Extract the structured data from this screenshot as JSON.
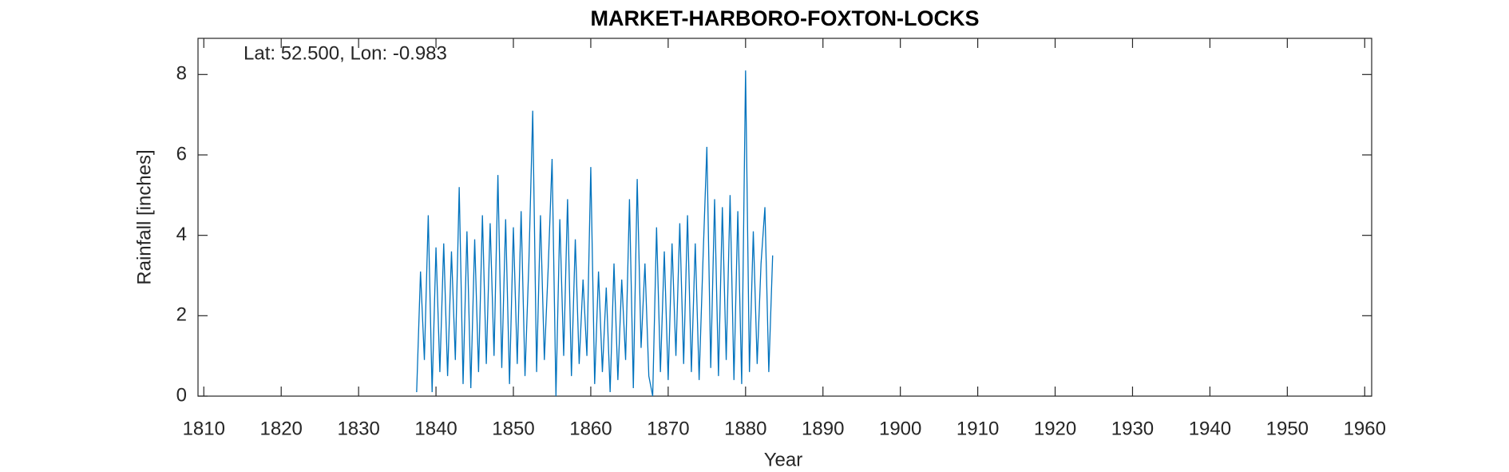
{
  "chart_data": {
    "type": "line",
    "title": "MARKET-HARBORO-FOXTON-LOCKS",
    "annotation": "Lat: 52.500, Lon: -0.983",
    "xlabel": "Year",
    "ylabel": "Rainfall [inches]",
    "color": "#0072bd",
    "x": [
      1837.5,
      1838,
      1838.5,
      1839,
      1839.5,
      1840,
      1840.5,
      1841,
      1841.5,
      1842,
      1842.5,
      1843,
      1843.5,
      1844,
      1844.5,
      1845,
      1845.5,
      1846,
      1846.5,
      1847,
      1847.5,
      1848,
      1848.5,
      1849,
      1849.5,
      1850,
      1850.5,
      1851,
      1851.5,
      1852,
      1852.5,
      1853,
      1853.5,
      1854,
      1854.5,
      1855,
      1855.5,
      1856,
      1856.5,
      1857,
      1857.5,
      1858,
      1858.5,
      1859,
      1859.5,
      1860,
      1860.5,
      1861,
      1861.5,
      1862,
      1862.5,
      1863,
      1863.5,
      1864,
      1864.5,
      1865,
      1865.5,
      1866,
      1866.5,
      1867,
      1867.5,
      1868,
      1868.5,
      1869,
      1869.5,
      1870,
      1870.5,
      1871,
      1871.5,
      1872,
      1872.5,
      1873,
      1873.5,
      1874,
      1874.5,
      1875,
      1875.5,
      1876,
      1876.5,
      1877,
      1877.5,
      1878,
      1878.5,
      1879,
      1879.5,
      1880,
      1880.5,
      1881,
      1881.5,
      1882,
      1882.5,
      1883,
      1883.5
    ],
    "values": [
      0.1,
      3.1,
      0.9,
      4.5,
      0.1,
      3.7,
      0.6,
      3.8,
      0.5,
      3.6,
      0.9,
      5.2,
      0.3,
      4.1,
      0.2,
      3.9,
      0.6,
      4.5,
      0.8,
      4.3,
      1.0,
      5.5,
      0.7,
      4.4,
      0.3,
      4.2,
      0.8,
      4.6,
      0.5,
      3.3,
      7.1,
      0.6,
      4.5,
      0.9,
      3.2,
      5.9,
      0.0,
      4.4,
      1.0,
      4.9,
      0.5,
      3.9,
      0.8,
      2.9,
      1.0,
      5.7,
      0.3,
      3.1,
      0.6,
      2.7,
      0.1,
      3.3,
      0.4,
      2.9,
      0.9,
      4.9,
      0.2,
      5.4,
      1.2,
      3.3,
      0.5,
      0.0,
      4.2,
      0.6,
      3.6,
      0.4,
      3.8,
      1.0,
      4.3,
      0.8,
      4.5,
      0.6,
      3.8,
      0.4,
      3.4,
      6.2,
      0.7,
      4.9,
      0.5,
      4.7,
      0.9,
      5.0,
      0.4,
      4.6,
      0.3,
      8.1,
      0.6,
      4.1,
      0.8,
      3.3,
      4.7,
      0.6,
      3.5
    ],
    "xlim": [
      1809.25,
      1960.9
    ],
    "ylim": [
      0,
      8.9
    ],
    "xticks": [
      1810,
      1820,
      1830,
      1840,
      1850,
      1860,
      1870,
      1880,
      1890,
      1900,
      1910,
      1920,
      1930,
      1940,
      1950,
      1960
    ],
    "yticks": [
      0,
      2,
      4,
      6,
      8
    ]
  }
}
